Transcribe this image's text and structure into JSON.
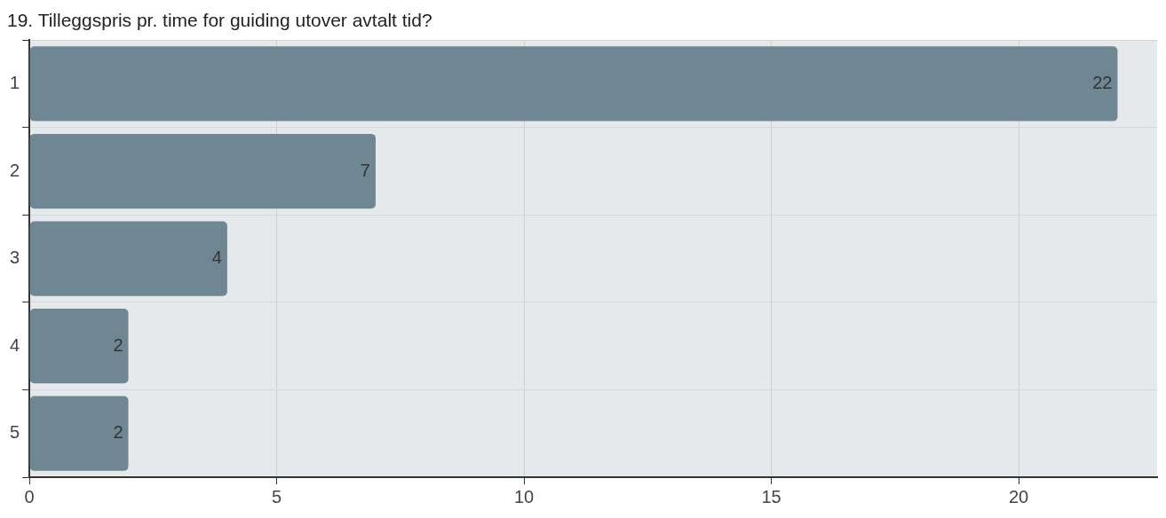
{
  "chart_data": {
    "type": "bar",
    "orientation": "horizontal",
    "title": "19. Tilleggspris pr. time for guiding utover avtalt tid?",
    "categories": [
      "1",
      "2",
      "3",
      "4",
      "5"
    ],
    "values": [
      22,
      7,
      4,
      2,
      2
    ],
    "color": "#6f8793",
    "xlim": [
      0,
      22.8
    ],
    "xticks": [
      0,
      5,
      10,
      15,
      20
    ],
    "grid": true,
    "data_labels": true
  }
}
